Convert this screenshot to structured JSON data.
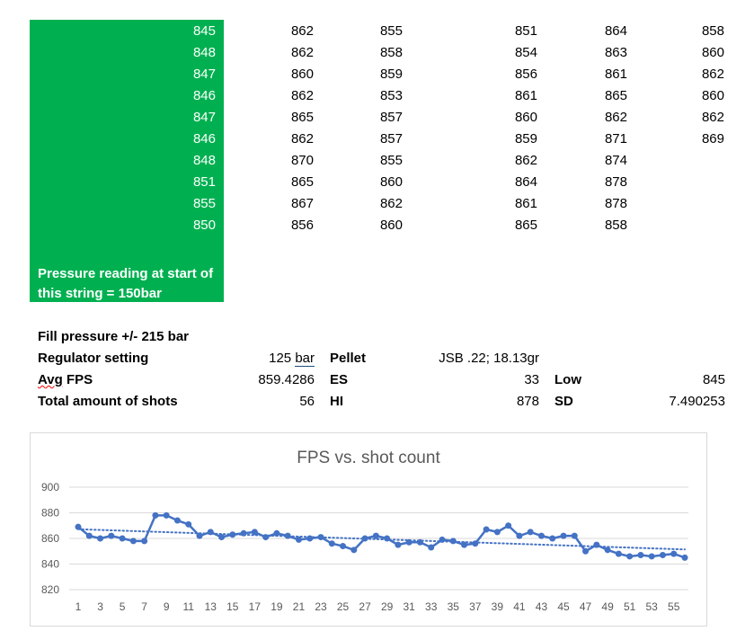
{
  "table": {
    "col1": [
      "845",
      "848",
      "847",
      "846",
      "847",
      "846",
      "848",
      "851",
      "855",
      "850"
    ],
    "col2": [
      "862",
      "862",
      "860",
      "862",
      "865",
      "862",
      "870",
      "865",
      "867",
      "856"
    ],
    "col3": [
      "855",
      "858",
      "859",
      "853",
      "857",
      "857",
      "855",
      "860",
      "862",
      "860"
    ],
    "col4": [
      "851",
      "854",
      "856",
      "861",
      "860",
      "859",
      "862",
      "864",
      "861",
      "865"
    ],
    "col5": [
      "864",
      "863",
      "861",
      "865",
      "862",
      "871",
      "874",
      "878",
      "878",
      "858"
    ],
    "col6": [
      "858",
      "860",
      "862",
      "860",
      "862",
      "869"
    ]
  },
  "note": "Pressure reading at start of this string = 150bar",
  "summary": {
    "fill_pressure_label": "Fill pressure +/- 215 bar",
    "regulator_label": "Regulator setting",
    "regulator_value": "125",
    "regulator_unit": "bar",
    "pellet_label": "Pellet",
    "pellet_value": "JSB .22; 18.13gr",
    "avg_label": "FPS",
    "avg_prefix": "Avg",
    "avg_value": "859.4286",
    "es_label": "ES",
    "es_value": "33",
    "low_label": "Low",
    "low_value": "845",
    "total_label": "Total amount of shots",
    "total_value": "56",
    "hi_label": "HI",
    "hi_value": "878",
    "sd_label": "SD",
    "sd_value": "7.490253"
  },
  "colors": {
    "green": "#00b050",
    "series": "#4472c4",
    "grid": "#d9d9d9",
    "axis_text": "#595959"
  },
  "chart_data": {
    "type": "line",
    "title": "FPS vs. shot count",
    "x": [
      1,
      2,
      3,
      4,
      5,
      6,
      7,
      8,
      9,
      10,
      11,
      12,
      13,
      14,
      15,
      16,
      17,
      18,
      19,
      20,
      21,
      22,
      23,
      24,
      25,
      26,
      27,
      28,
      29,
      30,
      31,
      32,
      33,
      34,
      35,
      36,
      37,
      38,
      39,
      40,
      41,
      42,
      43,
      44,
      45,
      46,
      47,
      48,
      49,
      50,
      51,
      52,
      53,
      54,
      55,
      56
    ],
    "x_tick_labels": [
      "1",
      "3",
      "5",
      "7",
      "9",
      "11",
      "13",
      "15",
      "17",
      "19",
      "21",
      "23",
      "25",
      "27",
      "29",
      "31",
      "33",
      "35",
      "37",
      "39",
      "41",
      "43",
      "45",
      "47",
      "49",
      "51",
      "53",
      "55"
    ],
    "y_ticks": [
      "820",
      "840",
      "860",
      "880",
      "900"
    ],
    "ylim": [
      820,
      900
    ],
    "series": [
      {
        "values": [
          869,
          862,
          860,
          862,
          860,
          858,
          858,
          878,
          878,
          874,
          871,
          862,
          865,
          861,
          863,
          864,
          865,
          861,
          864,
          862,
          859,
          860,
          861,
          856,
          854,
          851,
          860,
          862,
          860,
          855,
          857,
          857,
          853,
          859,
          858,
          855,
          856,
          867,
          865,
          870,
          862,
          865,
          862,
          860,
          862,
          862,
          850,
          855,
          851,
          848,
          846,
          847,
          846,
          847,
          848,
          845
        ],
        "style": "solid"
      }
    ],
    "trendline": {
      "style": "dotted",
      "start": [
        1,
        867.2
      ],
      "end": [
        56,
        851.4
      ]
    },
    "grid": true
  }
}
